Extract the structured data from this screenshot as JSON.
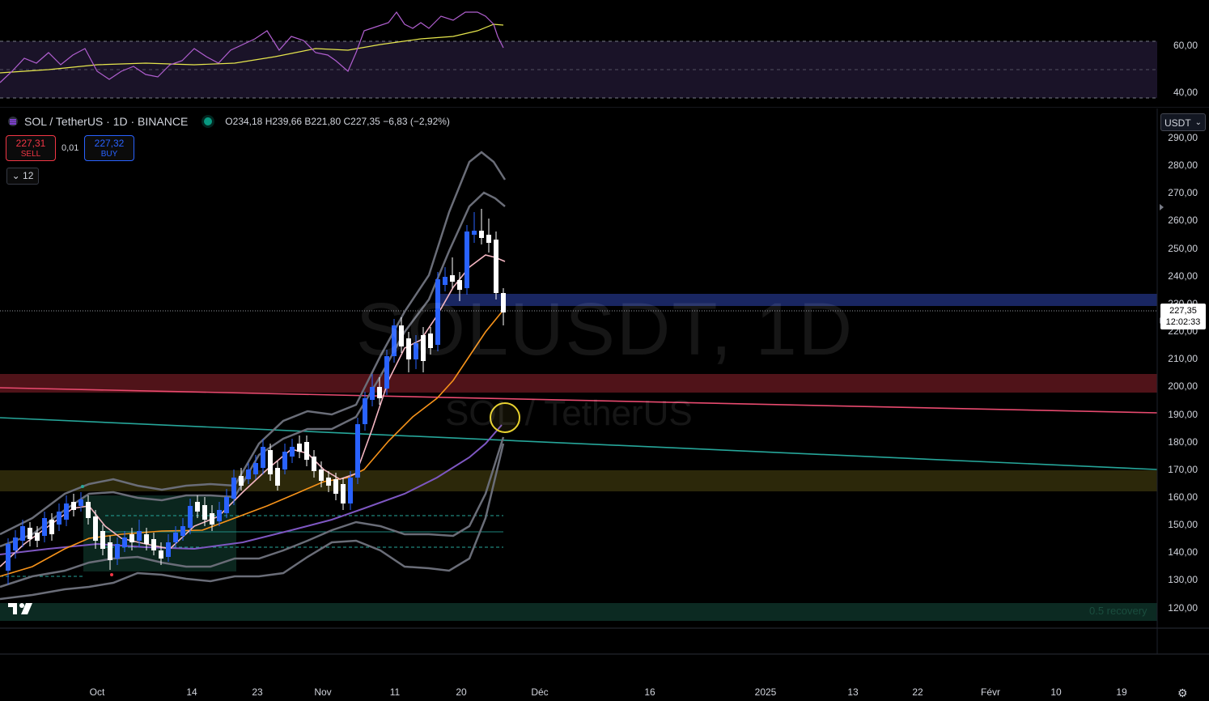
{
  "rsi": {
    "axis_labels": [
      "60,00",
      "40,00"
    ]
  },
  "legend": {
    "symbol": "SOL / TetherUS · 1D · BINANCE",
    "o_label": "O",
    "o_value": "234,18",
    "h_label": "H",
    "h_value": "239,66",
    "l_label": "B",
    "l_value": "221,80",
    "c_label": "C",
    "c_value": "227,35",
    "change": "−6,83 (−2,92%)"
  },
  "trade": {
    "sell_price": "227,31",
    "sell_label": "SELL",
    "buy_price": "227,32",
    "buy_label": "BUY",
    "spread": "0,01"
  },
  "indicators_toggle": "⌄ 12",
  "currency": "USDT",
  "price_axis": [
    "290,00",
    "280,00",
    "270,00",
    "260,00",
    "250,00",
    "240,00",
    "230,00",
    "220,00",
    "210,00",
    "200,00",
    "190,00",
    "180,00",
    "170,00",
    "160,00",
    "150,00",
    "140,00",
    "130,00",
    "120,00"
  ],
  "last_price": {
    "value": "227,35",
    "countdown": "12:02:33"
  },
  "watermark": {
    "line1": "SOLUSDT, 1D",
    "line2": "SOL / TetherUS"
  },
  "zones": {
    "bottom_label": "0.5 recovery"
  },
  "time_axis": [
    "Oct",
    "14",
    "23",
    "Nov",
    "11",
    "20",
    "Déc",
    "16",
    "2025",
    "13",
    "22",
    "Févr",
    "10",
    "19"
  ],
  "colors": {
    "up": "#2962ff",
    "down": "#ffffff",
    "rsi": "#b15fd0",
    "rsi_ma": "#e6e64d",
    "ema_short": "#f4b6c2",
    "ema_mid": "#f7931a",
    "ema_long": "#7e57c2",
    "red_line": "#e84a6f",
    "teal_line": "#26a69a"
  },
  "icons": {
    "settings": "gear-icon",
    "logo": "tradingview-logo-icon"
  }
}
